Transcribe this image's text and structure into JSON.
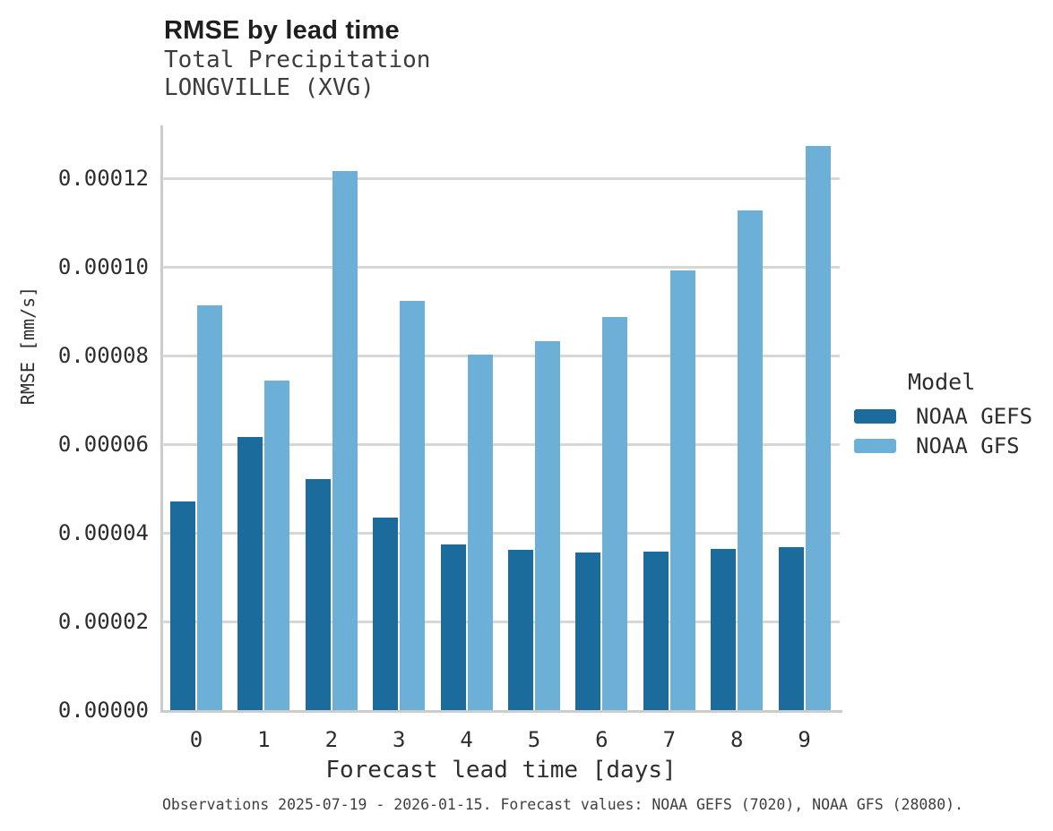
{
  "header": {
    "title": "RMSE by lead time",
    "subtitle_variable": "Total Precipitation",
    "subtitle_station": "LONGVILLE (XVG)"
  },
  "chart_data": {
    "type": "bar",
    "title": "RMSE by lead time",
    "subtitle": [
      "Total Precipitation",
      "LONGVILLE (XVG)"
    ],
    "xlabel": "Forecast lead time [days]",
    "ylabel": "RMSE [mm/s]",
    "categories": [
      "0",
      "1",
      "2",
      "3",
      "4",
      "5",
      "6",
      "7",
      "8",
      "9"
    ],
    "series": [
      {
        "name": "NOAA GEFS",
        "color": "#1b6c9c",
        "values": [
          4.72e-05,
          6.16e-05,
          5.21e-05,
          4.34e-05,
          3.73e-05,
          3.61e-05,
          3.56e-05,
          3.58e-05,
          3.64e-05,
          3.67e-05
        ]
      },
      {
        "name": "NOAA GFS",
        "color": "#6cb0d8",
        "values": [
          9.14e-05,
          7.43e-05,
          0.0001216,
          9.23e-05,
          8.02e-05,
          8.33e-05,
          8.87e-05,
          9.92e-05,
          0.0001128,
          0.0001274
        ]
      }
    ],
    "ylim": [
      0,
      0.000132
    ],
    "yticks": [
      0,
      2e-05,
      4e-05,
      6e-05,
      8e-05,
      0.0001,
      0.00012
    ],
    "ytick_labels": [
      "0.00000",
      "0.00002",
      "0.00004",
      "0.00006",
      "0.00008",
      "0.00010",
      "0.00012"
    ],
    "grid": "horizontal",
    "legend_title": "Model",
    "legend_position": "right"
  },
  "footer": {
    "caption": "Observations 2025-07-19 - 2026-01-15. Forecast values: NOAA GEFS (7020), NOAA GFS (28080)."
  }
}
